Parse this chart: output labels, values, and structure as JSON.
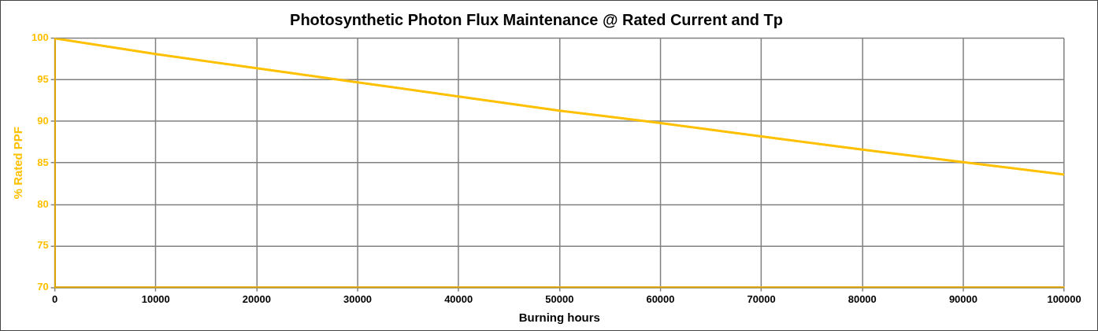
{
  "chart_data": {
    "type": "line",
    "title": "Photosynthetic Photon Flux Maintenance @ Rated Current and Tp",
    "xlabel": "Burning hours",
    "ylabel": "% Rated PPF",
    "x": [
      0,
      10000,
      20000,
      30000,
      40000,
      50000,
      60000,
      70000,
      80000,
      90000,
      100000
    ],
    "series": [
      {
        "color": "#ffc000",
        "values": [
          100,
          98.1,
          96.4,
          94.7,
          93.0,
          91.3,
          89.8,
          88.2,
          86.6,
          85.1,
          83.6
        ]
      }
    ],
    "xlim": [
      0,
      100000
    ],
    "xticks": [
      0,
      10000,
      20000,
      30000,
      40000,
      50000,
      60000,
      70000,
      80000,
      90000,
      100000
    ],
    "ylim": [
      70,
      100
    ],
    "yticks": [
      70,
      75,
      80,
      85,
      90,
      95,
      100
    ],
    "grid": true,
    "legend": false,
    "marker": "none",
    "line_style": "solid"
  }
}
